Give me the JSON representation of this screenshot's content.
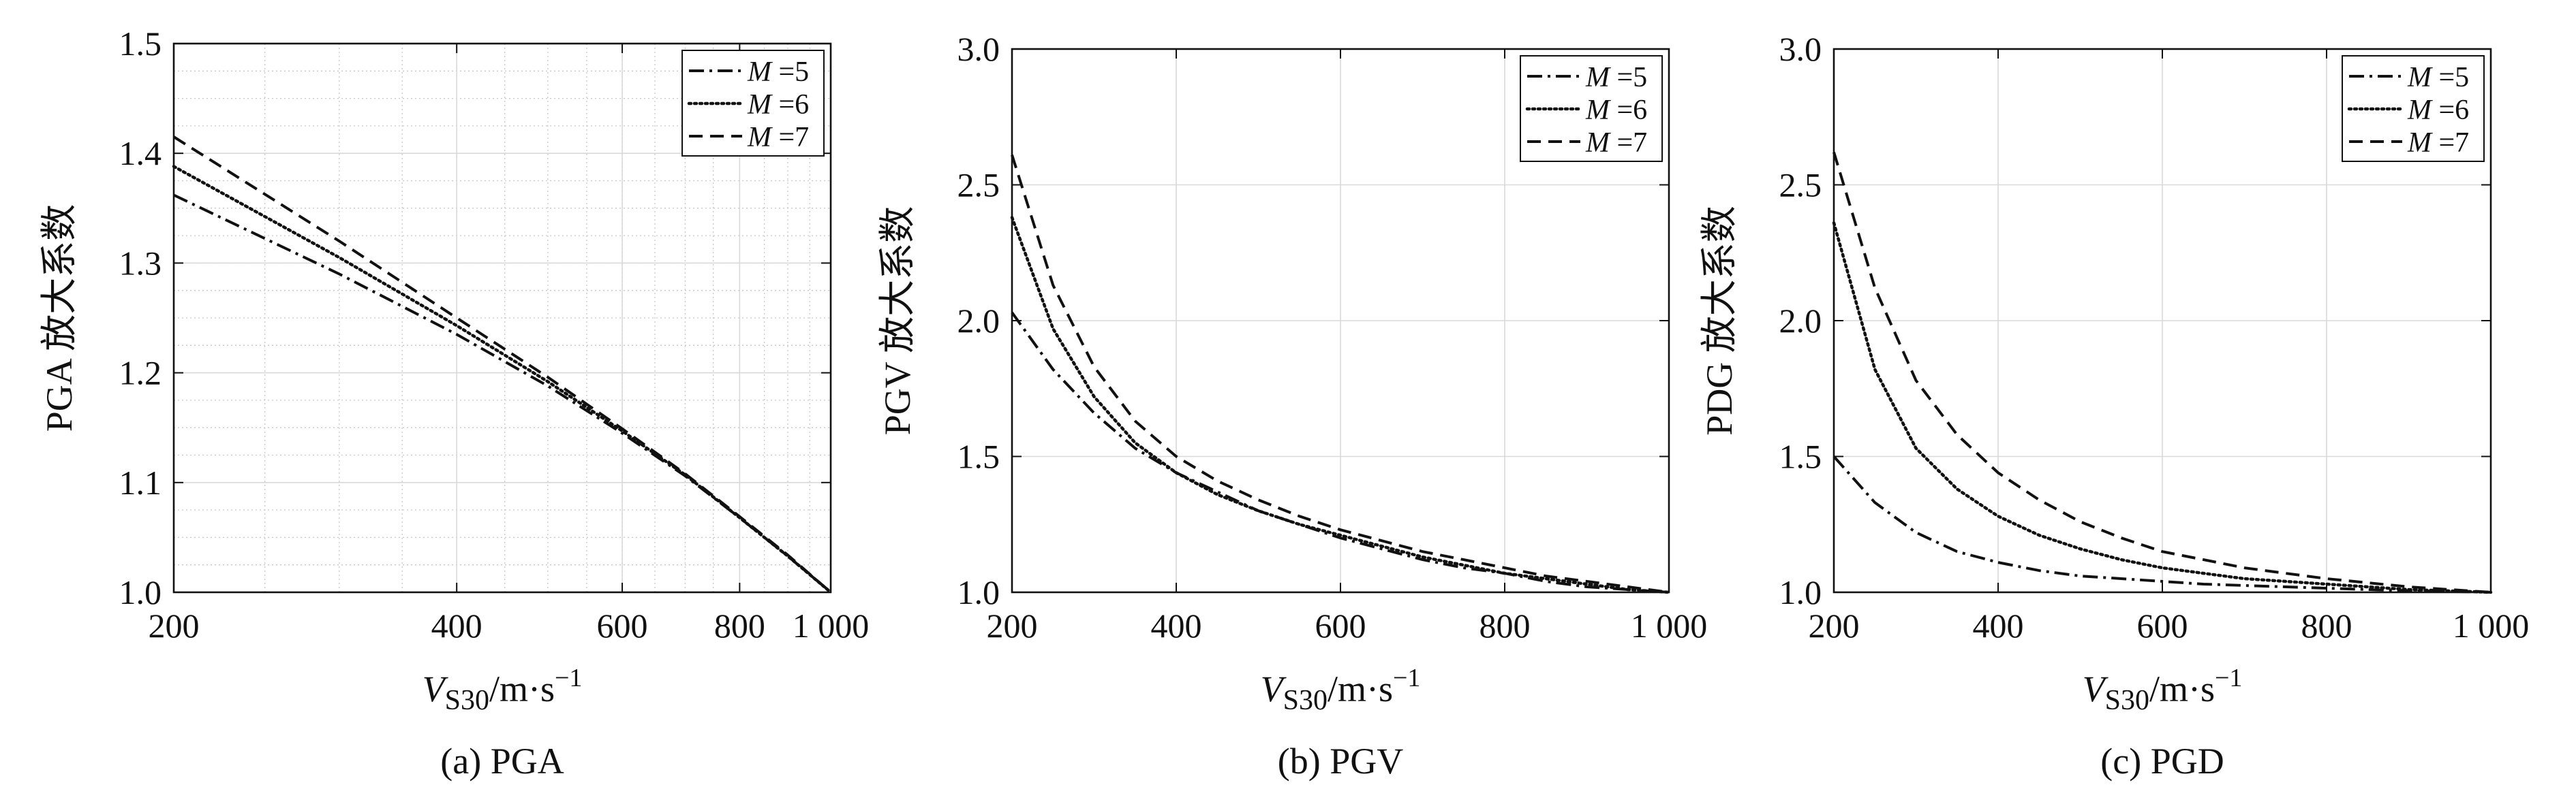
{
  "chart_data": [
    {
      "type": "line",
      "panel_caption": "(a) PGA",
      "ylabel": "PGA 放大系数",
      "xlabel": {
        "symbol": "V",
        "subscript": "S30",
        "unit": "/m·s",
        "exponent": "−1"
      },
      "xscale": "log",
      "xlim": [
        200,
        1000
      ],
      "ylim": [
        1.0,
        1.5
      ],
      "xticks": [
        200,
        400,
        600,
        800,
        1000
      ],
      "xtick_labels": [
        "200",
        "400",
        "600",
        "800",
        "1 000"
      ],
      "yticks": [
        1.0,
        1.1,
        1.2,
        1.3,
        1.4,
        1.5
      ],
      "ytick_labels": [
        "1.0",
        "1.1",
        "1.2",
        "1.3",
        "1.4",
        "1.5"
      ],
      "minor_grid": true,
      "legend_position": "top-right",
      "x": [
        200,
        300,
        400,
        500,
        600,
        700,
        800,
        900,
        1000
      ],
      "series": [
        {
          "name": "M =5",
          "label_var": "M",
          "label_val": "=5",
          "style": "dashdot",
          "values": [
            1.362,
            1.29,
            1.235,
            1.188,
            1.145,
            1.106,
            1.068,
            1.033,
            1.0
          ]
        },
        {
          "name": "M =6",
          "label_var": "M",
          "label_val": "=6",
          "style": "dotted",
          "values": [
            1.388,
            1.305,
            1.243,
            1.192,
            1.147,
            1.107,
            1.068,
            1.033,
            1.0
          ]
        },
        {
          "name": "M =7",
          "label_var": "M",
          "label_val": "=7",
          "style": "dashed",
          "values": [
            1.415,
            1.32,
            1.25,
            1.196,
            1.149,
            1.108,
            1.069,
            1.034,
            1.0
          ]
        }
      ]
    },
    {
      "type": "line",
      "panel_caption": "(b) PGV",
      "ylabel": "PGV 放大系数",
      "xlabel": {
        "symbol": "V",
        "subscript": "S30",
        "unit": "/m·s",
        "exponent": "−1"
      },
      "xscale": "linear",
      "xlim": [
        200,
        1000
      ],
      "ylim": [
        1.0,
        3.0
      ],
      "xticks": [
        200,
        400,
        600,
        800,
        1000
      ],
      "xtick_labels": [
        "200",
        "400",
        "600",
        "800",
        "1 000"
      ],
      "yticks": [
        1.0,
        1.5,
        2.0,
        2.5,
        3.0
      ],
      "ytick_labels": [
        "1.0",
        "1.5",
        "2.0",
        "2.5",
        "3.0"
      ],
      "minor_grid": false,
      "legend_position": "top-right",
      "x": [
        200,
        250,
        300,
        350,
        400,
        450,
        500,
        550,
        600,
        650,
        700,
        750,
        800,
        850,
        900,
        950,
        1000
      ],
      "series": [
        {
          "name": "M =5",
          "label_var": "M",
          "label_val": "=5",
          "style": "dashdot",
          "values": [
            2.03,
            1.82,
            1.66,
            1.53,
            1.44,
            1.37,
            1.3,
            1.25,
            1.2,
            1.16,
            1.12,
            1.09,
            1.07,
            1.04,
            1.02,
            1.01,
            1.0
          ]
        },
        {
          "name": "M =6",
          "label_var": "M",
          "label_val": "=6",
          "style": "dotted",
          "values": [
            2.38,
            1.97,
            1.72,
            1.55,
            1.44,
            1.36,
            1.3,
            1.25,
            1.21,
            1.17,
            1.13,
            1.1,
            1.07,
            1.05,
            1.03,
            1.01,
            1.0
          ]
        },
        {
          "name": "M =7",
          "label_var": "M",
          "label_val": "=7",
          "style": "dashed",
          "values": [
            2.61,
            2.13,
            1.83,
            1.63,
            1.5,
            1.41,
            1.34,
            1.28,
            1.23,
            1.19,
            1.15,
            1.12,
            1.09,
            1.06,
            1.04,
            1.02,
            1.0
          ]
        }
      ]
    },
    {
      "type": "line",
      "panel_caption": "(c) PGD",
      "ylabel": "PDG 放大系数",
      "xlabel": {
        "symbol": "V",
        "subscript": "S30",
        "unit": "/m·s",
        "exponent": "−1"
      },
      "xscale": "linear",
      "xlim": [
        200,
        1000
      ],
      "ylim": [
        1.0,
        3.0
      ],
      "xticks": [
        200,
        400,
        600,
        800,
        1000
      ],
      "xtick_labels": [
        "200",
        "400",
        "600",
        "800",
        "1 000"
      ],
      "yticks": [
        1.0,
        1.5,
        2.0,
        2.5,
        3.0
      ],
      "ytick_labels": [
        "1.0",
        "1.5",
        "2.0",
        "2.5",
        "3.0"
      ],
      "minor_grid": false,
      "legend_position": "top-right",
      "x": [
        200,
        250,
        300,
        350,
        400,
        450,
        500,
        550,
        600,
        650,
        700,
        750,
        800,
        850,
        900,
        950,
        1000
      ],
      "series": [
        {
          "name": "M =5",
          "label_var": "M",
          "label_val": "=5",
          "style": "dashdot",
          "values": [
            1.5,
            1.33,
            1.22,
            1.15,
            1.11,
            1.08,
            1.06,
            1.05,
            1.04,
            1.03,
            1.025,
            1.02,
            1.015,
            1.01,
            1.005,
            1.003,
            1.0
          ]
        },
        {
          "name": "M =6",
          "label_var": "M",
          "label_val": "=6",
          "style": "dotted",
          "values": [
            2.36,
            1.82,
            1.53,
            1.38,
            1.28,
            1.21,
            1.16,
            1.12,
            1.09,
            1.07,
            1.05,
            1.04,
            1.03,
            1.02,
            1.01,
            1.005,
            1.0
          ]
        },
        {
          "name": "M =7",
          "label_var": "M",
          "label_val": "=7",
          "style": "dashed",
          "values": [
            2.62,
            2.12,
            1.78,
            1.58,
            1.44,
            1.34,
            1.26,
            1.2,
            1.15,
            1.12,
            1.09,
            1.07,
            1.05,
            1.035,
            1.02,
            1.01,
            1.0
          ]
        }
      ]
    }
  ]
}
